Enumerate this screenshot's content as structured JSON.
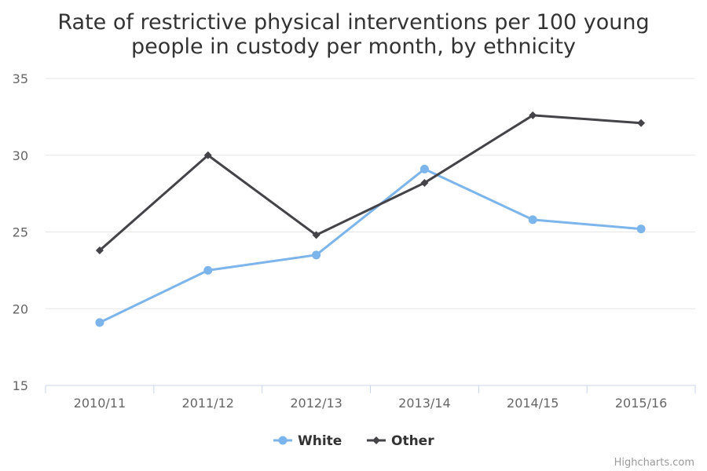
{
  "chart_data": {
    "type": "line",
    "title_lines": [
      "Rate of restrictive physical interventions per 100 young",
      "people in custody per month, by ethnicity"
    ],
    "categories": [
      "2010/11",
      "2011/12",
      "2012/13",
      "2013/14",
      "2014/15",
      "2015/16"
    ],
    "ylim": [
      15,
      35
    ],
    "yticks": [
      "15",
      "20",
      "25",
      "30",
      "35"
    ],
    "grid": true,
    "legend_position": "bottom-center",
    "series": [
      {
        "name": "White",
        "color": "#7cb5ec",
        "marker": "circle",
        "values": [
          19.1,
          22.5,
          23.5,
          29.1,
          25.8,
          25.2
        ]
      },
      {
        "name": "Other",
        "color": "#434348",
        "marker": "diamond",
        "values": [
          23.8,
          30.0,
          24.8,
          28.2,
          32.6,
          32.1
        ]
      }
    ]
  },
  "credits": "Highcharts.com"
}
